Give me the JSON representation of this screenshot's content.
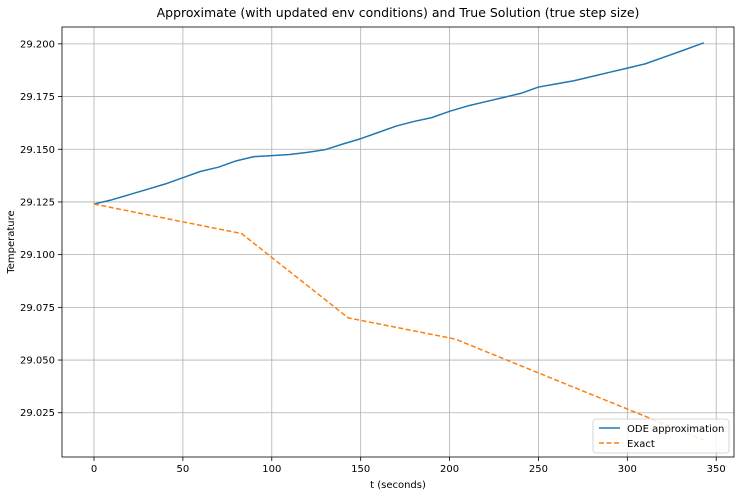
{
  "chart_data": {
    "type": "line",
    "title": "Approximate (with updated env conditions) and True Solution (true step size)",
    "xlabel": "t (seconds)",
    "ylabel": "Temperature",
    "xlim": [
      -18,
      360
    ],
    "ylim": [
      29.004,
      29.208
    ],
    "x_ticks": [
      0,
      50,
      100,
      150,
      200,
      250,
      300,
      350
    ],
    "x_tick_labels": [
      "0",
      "50",
      "100",
      "150",
      "200",
      "250",
      "300",
      "350"
    ],
    "y_ticks": [
      29.025,
      29.05,
      29.075,
      29.1,
      29.125,
      29.15,
      29.175,
      29.2
    ],
    "y_tick_labels": [
      "29.025",
      "29.050",
      "29.075",
      "29.100",
      "29.125",
      "29.150",
      "29.175",
      "29.200"
    ],
    "grid": true,
    "legend_position": "lower-right",
    "series": [
      {
        "name": "ODE approximation",
        "color": "#1f77b4",
        "style": "solid",
        "x": [
          0,
          10,
          20,
          30,
          40,
          50,
          60,
          70,
          80,
          90,
          100,
          110,
          120,
          130,
          140,
          150,
          160,
          170,
          180,
          190,
          200,
          210,
          220,
          230,
          240,
          250,
          260,
          270,
          280,
          290,
          300,
          310,
          320,
          330,
          343
        ],
        "y": [
          29.124,
          29.126,
          29.1285,
          29.131,
          29.1335,
          29.1365,
          29.1395,
          29.1415,
          29.1445,
          29.1465,
          29.147,
          29.1475,
          29.1485,
          29.1498,
          29.1525,
          29.155,
          29.158,
          29.161,
          29.1632,
          29.165,
          29.168,
          29.1705,
          29.1725,
          29.1745,
          29.1765,
          29.1795,
          29.181,
          29.1825,
          29.1845,
          29.1865,
          29.1885,
          29.1905,
          29.1935,
          29.1965,
          29.2005
        ]
      },
      {
        "name": "Exact",
        "color": "#ff7f0e",
        "style": "dashed",
        "x": [
          0,
          83,
          143,
          203,
          343
        ],
        "y": [
          29.124,
          29.11,
          29.07,
          29.06,
          29.012
        ]
      }
    ]
  }
}
